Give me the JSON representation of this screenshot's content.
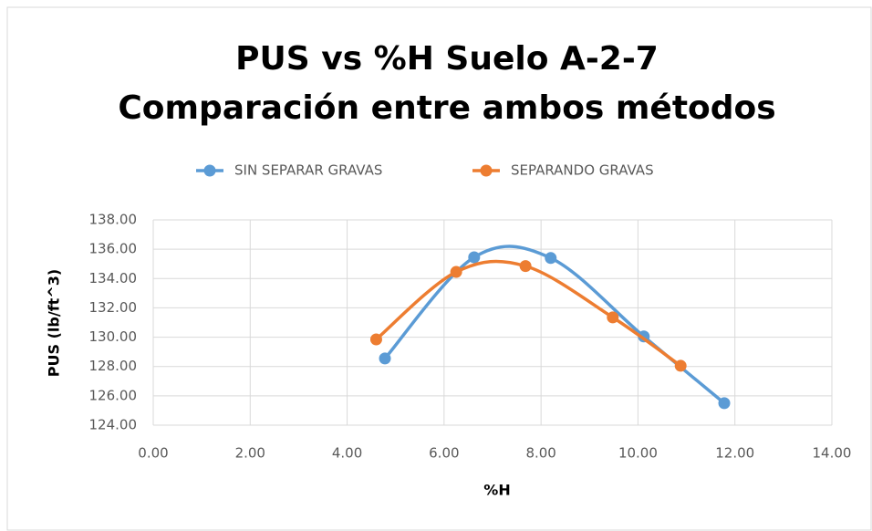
{
  "chart_data": {
    "type": "line",
    "title": [
      "PUS vs %H Suelo A-2-7",
      "Comparación entre ambos métodos"
    ],
    "xlabel": "%H",
    "ylabel": "PUS (lb/ft^3)",
    "smooth": true,
    "grid": true,
    "legend": "top",
    "series": [
      {
        "name": "SIN SEPARAR GRAVAS",
        "color": "#5b9bd5",
        "x": [
          4.78,
          6.62,
          8.2,
          10.12,
          11.78
        ],
        "values": [
          128.55,
          135.45,
          135.4,
          130.05,
          125.5
        ]
      },
      {
        "name": "SEPARANDO GRAVAS",
        "color": "#ed7d31",
        "x": [
          4.6,
          6.25,
          7.68,
          9.48,
          10.88
        ],
        "values": [
          129.85,
          134.45,
          134.85,
          131.35,
          128.05
        ]
      }
    ],
    "xlim": [
      0,
      14
    ],
    "xticks": [
      {
        "value": 0,
        "label": "0.00"
      },
      {
        "value": 2,
        "label": "2.00"
      },
      {
        "value": 4,
        "label": "4.00"
      },
      {
        "value": 6,
        "label": "6.00"
      },
      {
        "value": 8,
        "label": "8.00"
      },
      {
        "value": 10,
        "label": "10.00"
      },
      {
        "value": 12,
        "label": "12.00"
      },
      {
        "value": 14,
        "label": "14.00"
      }
    ],
    "ylim": [
      124,
      138
    ],
    "yticks": [
      {
        "value": 124,
        "label": "124.00"
      },
      {
        "value": 126,
        "label": "126.00"
      },
      {
        "value": 128,
        "label": "128.00"
      },
      {
        "value": 130,
        "label": "130.00"
      },
      {
        "value": 132,
        "label": "132.00"
      },
      {
        "value": 134,
        "label": "134.00"
      },
      {
        "value": 136,
        "label": "136.00"
      },
      {
        "value": 138,
        "label": "138.00"
      }
    ]
  }
}
